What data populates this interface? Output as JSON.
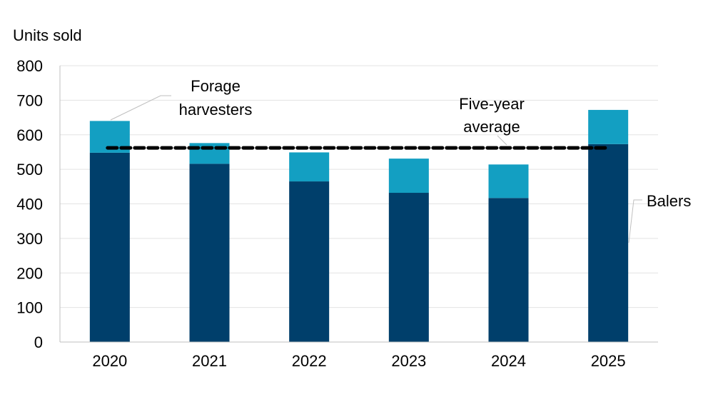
{
  "chart_data": {
    "type": "bar",
    "stacked": true,
    "ylabel": "Units sold",
    "ylim": [
      0,
      800
    ],
    "yticks": [
      0,
      100,
      200,
      300,
      400,
      500,
      600,
      700,
      800
    ],
    "grid": true,
    "categories": [
      "2020",
      "2021",
      "2022",
      "2023",
      "2024",
      "2025"
    ],
    "series": [
      {
        "name": "Balers",
        "color": "#003f6b",
        "values": [
          548,
          516,
          465,
          432,
          417,
          573
        ]
      },
      {
        "name": "Forage harvesters",
        "color": "#139fc2",
        "values": [
          92,
          60,
          84,
          99,
          97,
          99
        ]
      }
    ],
    "reference_line": {
      "name": "Five-year average",
      "value": 562,
      "style": "dashed",
      "color": "#000000"
    },
    "annotations": {
      "forage": [
        "Forage",
        "harvesters"
      ],
      "average": [
        "Five-year",
        "average"
      ],
      "balers": "Balers"
    }
  }
}
